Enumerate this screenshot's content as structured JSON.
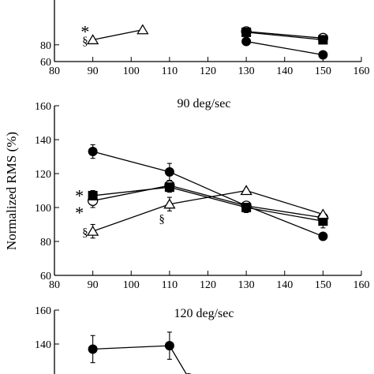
{
  "ylabel": "Normalized RMS (%)",
  "chart_data": [
    {
      "type": "line",
      "title": "",
      "xlim": [
        80,
        160
      ],
      "ylim": [
        60,
        100
      ],
      "xticks": [
        80,
        90,
        100,
        110,
        120,
        130,
        140,
        150,
        160
      ],
      "yticks": [
        60,
        80
      ],
      "series": [
        {
          "marker": "filled-circle",
          "points": [
            {
              "x": 130,
              "y": 84
            },
            {
              "x": 150,
              "y": 68,
              "err": 3
            }
          ]
        },
        {
          "marker": "open-circle",
          "points": [
            {
              "x": 130,
              "y": 96
            },
            {
              "x": 150,
              "y": 88
            }
          ]
        },
        {
          "marker": "filled-square",
          "points": [
            {
              "x": 130,
              "y": 95
            },
            {
              "x": 150,
              "y": 86,
              "err": 4
            }
          ]
        },
        {
          "marker": "open-triangle",
          "points": [
            {
              "x": 90,
              "y": 86
            },
            {
              "x": 103,
              "y": 98
            }
          ]
        }
      ],
      "annotations": [
        {
          "text": "§",
          "x": 88,
          "y": 86
        },
        {
          "text": "*",
          "x": 88,
          "y": 100
        }
      ]
    },
    {
      "type": "line",
      "title": "90 deg/sec",
      "xlim": [
        80,
        160
      ],
      "ylim": [
        60,
        160
      ],
      "xticks": [
        80,
        90,
        100,
        110,
        120,
        130,
        140,
        150,
        160
      ],
      "yticks": [
        60,
        80,
        100,
        120,
        140,
        160
      ],
      "series": [
        {
          "marker": "filled-circle",
          "points": [
            {
              "x": 90,
              "y": 133,
              "err": 4
            },
            {
              "x": 110,
              "y": 121,
              "err": 5
            },
            {
              "x": 130,
              "y": 101
            },
            {
              "x": 150,
              "y": 83
            }
          ]
        },
        {
          "marker": "open-circle",
          "points": [
            {
              "x": 90,
              "y": 104,
              "err": 4
            },
            {
              "x": 110,
              "y": 113,
              "err": 3
            },
            {
              "x": 130,
              "y": 101
            },
            {
              "x": 150,
              "y": 94
            }
          ]
        },
        {
          "marker": "filled-square",
          "points": [
            {
              "x": 90,
              "y": 107,
              "err": 3
            },
            {
              "x": 110,
              "y": 112,
              "err": 3
            },
            {
              "x": 130,
              "y": 100,
              "err": 3
            },
            {
              "x": 150,
              "y": 92,
              "err": 4
            }
          ]
        },
        {
          "marker": "open-triangle",
          "points": [
            {
              "x": 90,
              "y": 86,
              "err": 4
            },
            {
              "x": 110,
              "y": 102,
              "err": 4
            },
            {
              "x": 130,
              "y": 110
            },
            {
              "x": 150,
              "y": 96
            }
          ]
        }
      ],
      "annotations": [
        {
          "text": "*",
          "x": 86.5,
          "y": 109
        },
        {
          "text": "*",
          "x": 86.5,
          "y": 99
        },
        {
          "text": "§",
          "x": 88,
          "y": 86
        },
        {
          "text": "§",
          "x": 108,
          "y": 94
        }
      ]
    },
    {
      "type": "line",
      "title": "120 deg/sec",
      "xlim": [
        80,
        160
      ],
      "ylim": [
        120,
        160
      ],
      "xticks": [],
      "yticks": [
        140,
        160
      ],
      "series": [
        {
          "marker": "filled-circle",
          "points": [
            {
              "x": 90,
              "y": 137,
              "err": 8
            },
            {
              "x": 110,
              "y": 139,
              "err": 8
            },
            {
              "x": 115,
              "y": 120
            }
          ]
        }
      ],
      "annotations": []
    }
  ]
}
